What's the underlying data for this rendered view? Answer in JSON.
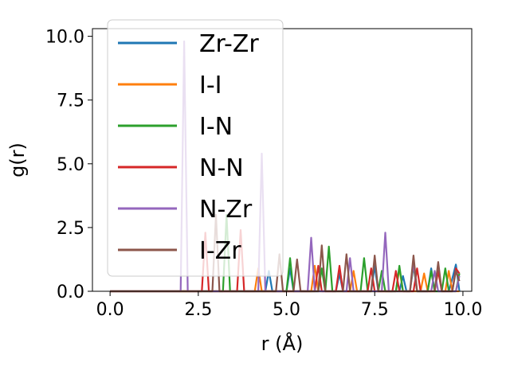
{
  "chart_data": {
    "type": "line",
    "xlabel": "r (Å)",
    "ylabel": "g(r)",
    "xlim": [
      -0.5,
      10.25
    ],
    "ylim": [
      0,
      10.3
    ],
    "xticks": [
      0.0,
      2.5,
      5.0,
      7.5,
      10.0
    ],
    "xtick_labels": [
      "0.0",
      "2.5",
      "5.0",
      "7.5",
      "10.0"
    ],
    "yticks": [
      0.0,
      2.5,
      5.0,
      7.5,
      10.0
    ],
    "ytick_labels": [
      "0.0",
      "2.5",
      "5.0",
      "7.5",
      "10.0"
    ],
    "grid": false,
    "legend_position": "upper-left",
    "series": [
      {
        "name": "Zr-Zr",
        "color": "#1f77b4",
        "x": [
          0,
          4.4,
          4.5,
          4.6,
          5.0,
          5.1,
          5.2,
          6.4,
          6.5,
          6.6,
          7.4,
          7.5,
          7.6,
          8.2,
          8.3,
          8.4,
          9.0,
          9.1,
          9.2,
          9.6,
          9.7,
          9.8,
          9.9
        ],
        "y": [
          0,
          0,
          0.8,
          0,
          0,
          0.9,
          0,
          0,
          0.7,
          0,
          0,
          1.0,
          0,
          0,
          0.6,
          0,
          0,
          0.9,
          0,
          0,
          0.5,
          1.05,
          0
        ]
      },
      {
        "name": "I-I",
        "color": "#ff7f0e",
        "x": [
          0,
          4.1,
          4.2,
          4.3,
          5.7,
          5.8,
          5.9,
          6.8,
          6.9,
          7.0,
          8.1,
          8.2,
          8.3,
          8.8,
          8.9,
          9.0,
          9.5,
          9.6,
          9.7,
          9.9
        ],
        "y": [
          0,
          0,
          0.9,
          0,
          0,
          1.0,
          0,
          0,
          0.8,
          0,
          0,
          0.9,
          0,
          0,
          0.7,
          0,
          0,
          0.8,
          0,
          0
        ]
      },
      {
        "name": "I-N",
        "color": "#2ca02c",
        "x": [
          0,
          3.2,
          3.3,
          3.4,
          5.0,
          5.1,
          5.2,
          5.9,
          6.0,
          6.1,
          6.1,
          6.2,
          6.3,
          7.1,
          7.2,
          7.3,
          7.6,
          7.7,
          7.8,
          8.1,
          8.2,
          8.3,
          8.5,
          8.6,
          8.7,
          9.0,
          9.1,
          9.2,
          9.4,
          9.5,
          9.6,
          9.8,
          9.9
        ],
        "y": [
          0,
          0,
          3.0,
          0,
          0,
          1.3,
          0,
          0,
          0.9,
          0,
          0,
          1.75,
          0,
          0,
          1.3,
          0,
          0,
          0.8,
          0,
          0,
          1.0,
          0,
          0,
          1.0,
          0,
          0,
          0.8,
          0,
          0,
          0.9,
          0,
          0,
          0.7
        ]
      },
      {
        "name": "N-N",
        "color": "#d62728",
        "x": [
          0,
          2.6,
          2.7,
          2.8,
          3.6,
          3.7,
          3.8,
          5.8,
          5.9,
          6.0,
          6.4,
          6.5,
          6.6,
          7.3,
          7.4,
          7.5,
          8.0,
          8.1,
          8.2,
          8.6,
          8.7,
          8.8,
          9.2,
          9.3,
          9.4,
          9.7,
          9.8,
          9.9
        ],
        "y": [
          0,
          0,
          2.3,
          0,
          0,
          2.4,
          0,
          0,
          1.0,
          0,
          0,
          1.0,
          0,
          0,
          0.9,
          0,
          0,
          0.8,
          0,
          0,
          0.9,
          0,
          0,
          0.8,
          0,
          0,
          0.9,
          0.7
        ]
      },
      {
        "name": "N-Zr",
        "color": "#9467bd",
        "x": [
          0,
          2.0,
          2.1,
          2.2,
          4.2,
          4.3,
          4.4,
          5.6,
          5.7,
          5.8,
          6.7,
          6.8,
          6.9,
          7.7,
          7.8,
          7.9,
          8.5,
          8.6,
          8.7,
          9.1,
          9.2,
          9.3,
          9.8,
          9.9
        ],
        "y": [
          0,
          0,
          9.8,
          0,
          0,
          5.4,
          0,
          0,
          2.1,
          0,
          0,
          1.3,
          0,
          0,
          2.3,
          0,
          0,
          1.1,
          0,
          0,
          0.8,
          0,
          0,
          0.6
        ]
      },
      {
        "name": "I-Zr",
        "color": "#8c564b",
        "x": [
          0,
          2.9,
          3.0,
          3.1,
          4.7,
          4.8,
          4.9,
          5.2,
          5.3,
          5.4,
          5.9,
          6.0,
          6.1,
          6.6,
          6.7,
          6.8,
          7.4,
          7.5,
          7.6,
          8.5,
          8.6,
          8.7,
          9.2,
          9.3,
          9.4,
          9.7,
          9.8,
          9.9
        ],
        "y": [
          0,
          0,
          3.0,
          0,
          0,
          1.45,
          0,
          0,
          1.25,
          0,
          0,
          1.8,
          0,
          0,
          1.45,
          0,
          0,
          1.4,
          0,
          0,
          1.4,
          0,
          0,
          1.15,
          0,
          0,
          0.8,
          0.4
        ]
      }
    ]
  }
}
